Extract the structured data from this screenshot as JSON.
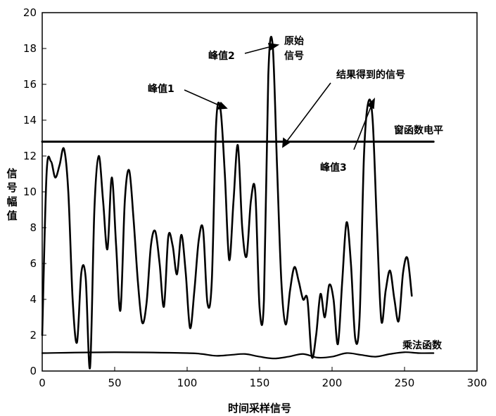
{
  "chart_data": {
    "type": "line",
    "xlabel": "时间采样信号",
    "ylabel": "信号幅值",
    "xlim": [
      0,
      300
    ],
    "ylim": [
      0,
      20
    ],
    "x_ticks": [
      0,
      50,
      100,
      150,
      200,
      250,
      300
    ],
    "y_ticks": [
      0,
      2,
      4,
      6,
      8,
      10,
      12,
      14,
      16,
      18,
      20
    ],
    "grid": false,
    "series": [
      {
        "name": "",
        "role": "signal",
        "x": [
          0,
          3,
          6,
          9,
          12,
          15,
          18,
          21,
          24,
          27,
          30,
          33,
          36,
          39,
          42,
          45,
          48,
          51,
          54,
          57,
          60,
          63,
          66,
          69,
          72,
          75,
          78,
          81,
          84,
          87,
          90,
          93,
          96,
          99,
          102,
          105,
          108,
          111,
          114,
          117,
          120,
          123,
          126,
          129,
          132,
          135,
          138,
          141,
          144,
          147,
          150,
          153,
          156,
          159,
          162,
          165,
          168,
          171,
          174,
          177,
          180,
          183,
          186,
          189,
          192,
          195,
          198,
          201,
          204,
          207,
          210,
          213,
          216,
          219,
          222,
          225,
          228,
          231,
          234,
          237,
          240,
          243,
          246,
          249,
          252,
          255
        ],
        "values": [
          2.0,
          11.0,
          11.7,
          10.8,
          11.5,
          12.4,
          10.0,
          4.0,
          1.6,
          5.5,
          5.2,
          0.2,
          9.0,
          12.0,
          9.5,
          6.8,
          10.8,
          7.0,
          3.4,
          9.5,
          11.2,
          8.5,
          5.0,
          2.7,
          3.8,
          7.0,
          7.8,
          6.0,
          3.6,
          7.5,
          7.0,
          5.4,
          7.6,
          5.5,
          2.4,
          4.5,
          7.3,
          7.9,
          3.8,
          5.0,
          13.8,
          14.6,
          11.0,
          6.2,
          9.5,
          12.6,
          8.0,
          6.4,
          9.5,
          10.0,
          3.5,
          4.0,
          16.5,
          18.2,
          11.5,
          5.0,
          2.6,
          4.5,
          5.8,
          5.0,
          4.0,
          4.0,
          0.8,
          2.0,
          4.3,
          3.0,
          4.8,
          4.0,
          1.5,
          5.0,
          8.3,
          6.0,
          1.8,
          3.0,
          12.0,
          15.0,
          14.0,
          8.0,
          2.8,
          4.5,
          5.6,
          4.0,
          2.8,
          5.5,
          6.3,
          4.2
        ]
      },
      {
        "name": "",
        "role": "multiplier",
        "x": [
          0,
          50,
          100,
          110,
          120,
          130,
          140,
          150,
          160,
          170,
          180,
          190,
          200,
          210,
          220,
          230,
          240,
          250,
          260,
          270
        ],
        "values": [
          1.0,
          1.05,
          1.0,
          0.95,
          0.85,
          0.9,
          0.95,
          0.8,
          0.7,
          0.8,
          0.95,
          0.75,
          0.8,
          1.0,
          0.9,
          0.8,
          0.95,
          1.05,
          1.0,
          1.0
        ]
      },
      {
        "name": "",
        "role": "window",
        "x": [
          0,
          270
        ],
        "values": [
          12.8,
          12.8
        ]
      }
    ],
    "annotations": [
      {
        "id": "peak1",
        "text": "峰值1"
      },
      {
        "id": "peak2",
        "text": "峰值2"
      },
      {
        "id": "orig1",
        "text": "原始"
      },
      {
        "id": "orig2",
        "text": "信号"
      },
      {
        "id": "result",
        "text": "结果得到的信号"
      },
      {
        "id": "window",
        "text": "窗函数电平"
      },
      {
        "id": "peak3",
        "text": "峰值3"
      },
      {
        "id": "mult",
        "text": "乘法函数"
      }
    ]
  }
}
